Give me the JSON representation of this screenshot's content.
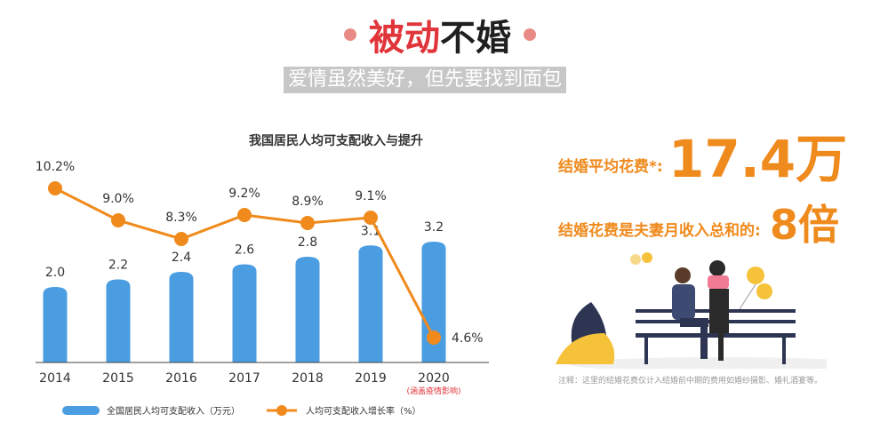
{
  "header": {
    "title_part1": "被动",
    "title_part2": "不婚",
    "subtitle": "爱情虽然美好，但先要找到面包"
  },
  "chart_data": {
    "type": "bar",
    "title": "我国居民人均可支配收入与提升",
    "categories": [
      "2014",
      "2015",
      "2016",
      "2017",
      "2018",
      "2019",
      "2020"
    ],
    "category_note": {
      "2020": "(涵盖疫情影响)"
    },
    "series": [
      {
        "name": "全国居民人均可支配收入（万元）",
        "type": "bar",
        "values": [
          2.0,
          2.2,
          2.4,
          2.6,
          2.8,
          3.1,
          3.2
        ],
        "labels": [
          "2.0",
          "2.2",
          "2.4",
          "2.6",
          "2.8",
          "3.1",
          "3.2"
        ],
        "color": "#4a9de0"
      },
      {
        "name": "人均可支配收入增长率（%）",
        "type": "line",
        "values": [
          10.2,
          9.0,
          8.3,
          9.2,
          8.9,
          9.1,
          4.6
        ],
        "labels": [
          "10.2%",
          "9.0%",
          "8.3%",
          "9.2%",
          "8.9%",
          "9.1%",
          "4.6%"
        ],
        "color": "#f08a1c"
      }
    ],
    "legend_position": "bottom",
    "grid": false
  },
  "metrics": [
    {
      "label": "结婚平均花费*:",
      "value": "17.4万"
    },
    {
      "label": "结婚花费是夫妻月收入总和的:",
      "value": "8倍"
    }
  ],
  "note": "注释：这里的结婚花费仅计入结婚前中期的费用如婚纱摄影、婚礼酒宴等。",
  "colors": {
    "accent_red": "#e0353a",
    "orange": "#f08a1c",
    "bar_blue": "#4a9de0",
    "pink": "#f27b94",
    "yellow": "#f6c23a",
    "navy": "#2e3552"
  }
}
